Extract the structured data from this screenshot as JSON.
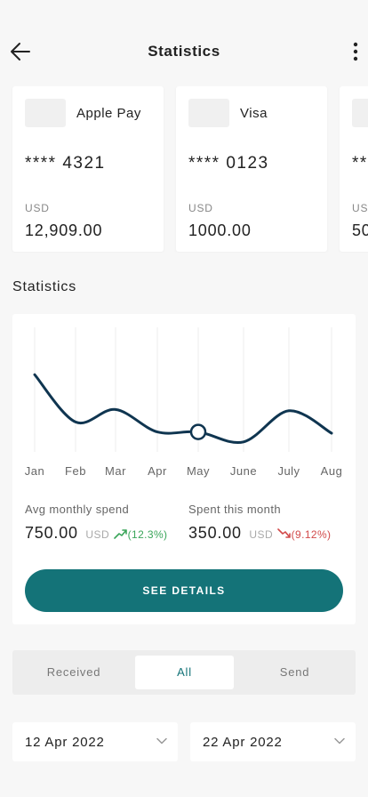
{
  "header": {
    "title": "Statistics"
  },
  "cards": [
    {
      "name": "Apple Pay",
      "number": "**** 4321",
      "currency": "USD",
      "balance": "12,909.00"
    },
    {
      "name": "Visa",
      "number": "**** 0123",
      "currency": "USD",
      "balance": "1000.00"
    },
    {
      "name": "",
      "number": "**",
      "currency": "US",
      "balance": "50"
    }
  ],
  "statistics": {
    "title": "Statistics",
    "avg": {
      "label": "Avg monthly spend",
      "value": "750.00",
      "currency": "USD",
      "change": "(12.3%)",
      "trend": "up"
    },
    "month": {
      "label": "Spent this month",
      "value": "350.00",
      "currency": "USD",
      "change": "(9.12%)",
      "trend": "down"
    },
    "details_button": "SEE DETAILS"
  },
  "chart_data": {
    "type": "line",
    "categories": [
      "Jan",
      "Feb",
      "Mar",
      "Apr",
      "May",
      "June",
      "July",
      "Aug"
    ],
    "values": [
      0.62,
      0.24,
      0.34,
      0.16,
      0.16,
      0.08,
      0.33,
      0.15
    ],
    "highlight_index": 4,
    "line_color": "#0f3550",
    "grid": "vertical"
  },
  "filters": {
    "tabs": [
      "Received",
      "All",
      "Send"
    ],
    "active": 1
  },
  "date_range": {
    "from": "12 Apr 2022",
    "to": "22 Apr 2022"
  },
  "colors": {
    "accent": "#147378",
    "up": "#3aa55a",
    "down": "#d24a4a"
  }
}
